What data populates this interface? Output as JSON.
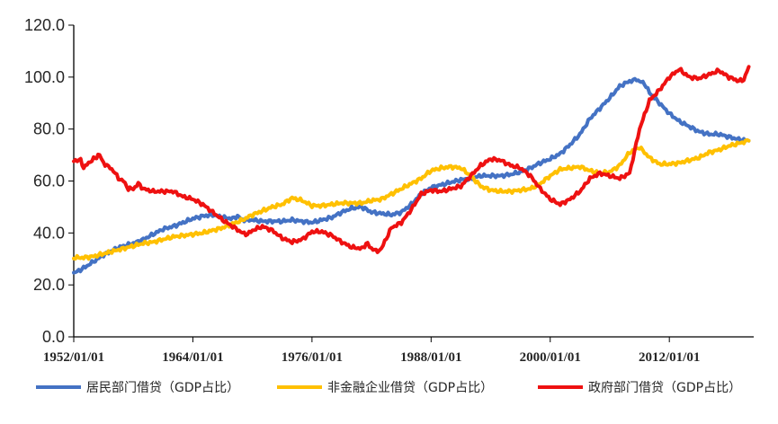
{
  "chart_data": {
    "type": "line",
    "title": "",
    "xlabel": "",
    "ylabel": "",
    "ylim": [
      0,
      120
    ],
    "xlim": [
      1952.0,
      2020.5
    ],
    "y_ticks": [
      "0.0",
      "20.0",
      "40.0",
      "60.0",
      "80.0",
      "100.0",
      "120.0"
    ],
    "x_ticks": [
      {
        "year": 1952,
        "label": "1952/01/01"
      },
      {
        "year": 1964,
        "label": "1964/01/01"
      },
      {
        "year": 1976,
        "label": "1976/01/01"
      },
      {
        "year": 1988,
        "label": "1988/01/01"
      },
      {
        "year": 2000,
        "label": "2000/01/01"
      },
      {
        "year": 2012,
        "label": "2012/01/01"
      }
    ],
    "grid": false,
    "legend_position": "bottom",
    "series": [
      {
        "name": "居民部门借贷（GDP占比）",
        "color": "#4472C4",
        "points": [
          [
            1952.0,
            24.5
          ],
          [
            1953.0,
            26.5
          ],
          [
            1954.0,
            29
          ],
          [
            1955.0,
            31.5
          ],
          [
            1956.0,
            33.5
          ],
          [
            1957.0,
            35
          ],
          [
            1958.0,
            36
          ],
          [
            1959.0,
            37.5
          ],
          [
            1960.0,
            39.5
          ],
          [
            1961.0,
            41.5
          ],
          [
            1962.0,
            42.5
          ],
          [
            1963.0,
            44
          ],
          [
            1964.0,
            45.5
          ],
          [
            1965.0,
            46.5
          ],
          [
            1966.0,
            47
          ],
          [
            1967.0,
            46
          ],
          [
            1968.0,
            45.5
          ],
          [
            1968.5,
            46.5
          ],
          [
            1969.0,
            45
          ],
          [
            1970.0,
            45
          ],
          [
            1971.0,
            44.5
          ],
          [
            1972.0,
            44.5
          ],
          [
            1973.0,
            44.5
          ],
          [
            1974.0,
            45
          ],
          [
            1975.0,
            44.5
          ],
          [
            1976.0,
            44
          ],
          [
            1977.0,
            45
          ],
          [
            1978.0,
            46
          ],
          [
            1979.0,
            48
          ],
          [
            1980.0,
            49.5
          ],
          [
            1981.0,
            50
          ],
          [
            1982.0,
            48
          ],
          [
            1983.0,
            47.5
          ],
          [
            1984.0,
            47
          ],
          [
            1985.0,
            48
          ],
          [
            1986.0,
            51
          ],
          [
            1987.0,
            55
          ],
          [
            1988.0,
            57.5
          ],
          [
            1989.0,
            58.5
          ],
          [
            1990.0,
            59.5
          ],
          [
            1991.0,
            60.5
          ],
          [
            1992.0,
            61
          ],
          [
            1993.0,
            62
          ],
          [
            1994.0,
            62
          ],
          [
            1995.0,
            62
          ],
          [
            1996.0,
            62.5
          ],
          [
            1997.0,
            63.5
          ],
          [
            1998.0,
            65
          ],
          [
            1999.0,
            67
          ],
          [
            2000.0,
            68.5
          ],
          [
            2001.0,
            70.5
          ],
          [
            2002.0,
            74
          ],
          [
            2003.0,
            78
          ],
          [
            2004.0,
            84
          ],
          [
            2005.0,
            88
          ],
          [
            2006.0,
            92
          ],
          [
            2007.0,
            96.5
          ],
          [
            2008.0,
            98.5
          ],
          [
            2008.7,
            99
          ],
          [
            2009.5,
            97.5
          ],
          [
            2010.0,
            94
          ],
          [
            2011.0,
            90
          ],
          [
            2012.0,
            86
          ],
          [
            2013.0,
            83
          ],
          [
            2014.0,
            81
          ],
          [
            2015.0,
            79
          ],
          [
            2016.0,
            78
          ],
          [
            2017.0,
            78
          ],
          [
            2018.0,
            77
          ],
          [
            2019.0,
            76
          ],
          [
            2020.0,
            75.5
          ]
        ]
      },
      {
        "name": "非金融企业借贷（GDP占比）",
        "color": "#FFC000",
        "points": [
          [
            1952.0,
            30.5
          ],
          [
            1953.0,
            30.5
          ],
          [
            1954.0,
            31
          ],
          [
            1955.0,
            32
          ],
          [
            1956.0,
            33
          ],
          [
            1957.0,
            34
          ],
          [
            1958.0,
            35
          ],
          [
            1959.0,
            36
          ],
          [
            1960.0,
            36.5
          ],
          [
            1961.0,
            37.5
          ],
          [
            1962.0,
            38.5
          ],
          [
            1963.0,
            39
          ],
          [
            1964.0,
            39.5
          ],
          [
            1965.0,
            40
          ],
          [
            1966.0,
            41
          ],
          [
            1967.0,
            42
          ],
          [
            1968.0,
            43.5
          ],
          [
            1969.0,
            45
          ],
          [
            1970.0,
            47
          ],
          [
            1971.0,
            48.5
          ],
          [
            1972.0,
            50
          ],
          [
            1973.0,
            51
          ],
          [
            1974.0,
            53.5
          ],
          [
            1975.0,
            52.5
          ],
          [
            1976.0,
            50.5
          ],
          [
            1977.0,
            50.5
          ],
          [
            1978.0,
            51
          ],
          [
            1979.0,
            51.5
          ],
          [
            1980.0,
            51.5
          ],
          [
            1981.0,
            51.5
          ],
          [
            1982.0,
            52.5
          ],
          [
            1983.0,
            53
          ],
          [
            1984.0,
            55
          ],
          [
            1985.0,
            57
          ],
          [
            1986.0,
            59
          ],
          [
            1987.0,
            61
          ],
          [
            1988.0,
            64
          ],
          [
            1989.0,
            65
          ],
          [
            1990.0,
            65.5
          ],
          [
            1991.0,
            65
          ],
          [
            1992.0,
            62
          ],
          [
            1993.0,
            58
          ],
          [
            1994.0,
            56.5
          ],
          [
            1995.0,
            56
          ],
          [
            1996.0,
            56
          ],
          [
            1997.0,
            56.5
          ],
          [
            1998.0,
            57
          ],
          [
            1999.0,
            59
          ],
          [
            2000.0,
            62
          ],
          [
            2001.0,
            64.5
          ],
          [
            2002.0,
            65
          ],
          [
            2003.0,
            65.5
          ],
          [
            2004.0,
            64
          ],
          [
            2005.0,
            63
          ],
          [
            2006.0,
            63.5
          ],
          [
            2007.0,
            66
          ],
          [
            2008.0,
            71
          ],
          [
            2009.0,
            73
          ],
          [
            2010.0,
            69
          ],
          [
            2011.0,
            66.5
          ],
          [
            2012.0,
            66.5
          ],
          [
            2013.0,
            67
          ],
          [
            2014.0,
            68
          ],
          [
            2015.0,
            69
          ],
          [
            2016.0,
            71
          ],
          [
            2017.0,
            72
          ],
          [
            2018.0,
            73.5
          ],
          [
            2019.0,
            74.5
          ],
          [
            2020.0,
            75.5
          ]
        ]
      },
      {
        "name": "政府部门借贷（GDP占比）",
        "color": "#EE1111",
        "points": [
          [
            1952.0,
            68
          ],
          [
            1952.7,
            68
          ],
          [
            1953.0,
            65
          ],
          [
            1953.5,
            67
          ],
          [
            1954.0,
            68.5
          ],
          [
            1954.6,
            70
          ],
          [
            1955.0,
            67
          ],
          [
            1956.0,
            64
          ],
          [
            1956.5,
            61
          ],
          [
            1957.0,
            60
          ],
          [
            1957.5,
            57
          ],
          [
            1958.0,
            57
          ],
          [
            1958.5,
            59
          ],
          [
            1959.0,
            57
          ],
          [
            1960.0,
            56
          ],
          [
            1961.0,
            56
          ],
          [
            1962.0,
            56
          ],
          [
            1963.0,
            54
          ],
          [
            1964.0,
            53
          ],
          [
            1965.0,
            51
          ],
          [
            1966.0,
            48
          ],
          [
            1967.0,
            45
          ],
          [
            1968.0,
            42.5
          ],
          [
            1969.0,
            40
          ],
          [
            1969.5,
            39.5
          ],
          [
            1970.0,
            41
          ],
          [
            1971.0,
            42.5
          ],
          [
            1972.0,
            41
          ],
          [
            1973.0,
            38
          ],
          [
            1974.0,
            36.5
          ],
          [
            1975.0,
            37.5
          ],
          [
            1976.0,
            40.5
          ],
          [
            1977.0,
            40.5
          ],
          [
            1978.0,
            39
          ],
          [
            1979.0,
            36.5
          ],
          [
            1980.0,
            34.5
          ],
          [
            1981.0,
            34
          ],
          [
            1981.6,
            36
          ],
          [
            1982.0,
            34
          ],
          [
            1982.6,
            33
          ],
          [
            1983.0,
            34
          ],
          [
            1984.0,
            42
          ],
          [
            1985.0,
            44
          ],
          [
            1986.0,
            49
          ],
          [
            1987.0,
            55
          ],
          [
            1988.0,
            56.5
          ],
          [
            1989.0,
            56
          ],
          [
            1990.0,
            57
          ],
          [
            1991.0,
            58
          ],
          [
            1992.0,
            62
          ],
          [
            1993.0,
            66
          ],
          [
            1994.0,
            68.5
          ],
          [
            1995.0,
            68
          ],
          [
            1996.0,
            66
          ],
          [
            1997.0,
            65
          ],
          [
            1998.0,
            62
          ],
          [
            1999.0,
            57
          ],
          [
            2000.0,
            53
          ],
          [
            2001.0,
            51
          ],
          [
            2002.0,
            53
          ],
          [
            2003.0,
            56
          ],
          [
            2004.0,
            61
          ],
          [
            2005.0,
            63
          ],
          [
            2006.0,
            62
          ],
          [
            2007.0,
            61
          ],
          [
            2008.0,
            63
          ],
          [
            2009.0,
            80
          ],
          [
            2010.0,
            91
          ],
          [
            2011.0,
            95
          ],
          [
            2012.0,
            100
          ],
          [
            2013.0,
            103
          ],
          [
            2014.0,
            100
          ],
          [
            2015.0,
            99.5
          ],
          [
            2016.0,
            101
          ],
          [
            2017.0,
            102.5
          ],
          [
            2018.0,
            100
          ],
          [
            2019.0,
            98.5
          ],
          [
            2019.5,
            99
          ],
          [
            2020.0,
            104
          ]
        ]
      }
    ]
  }
}
